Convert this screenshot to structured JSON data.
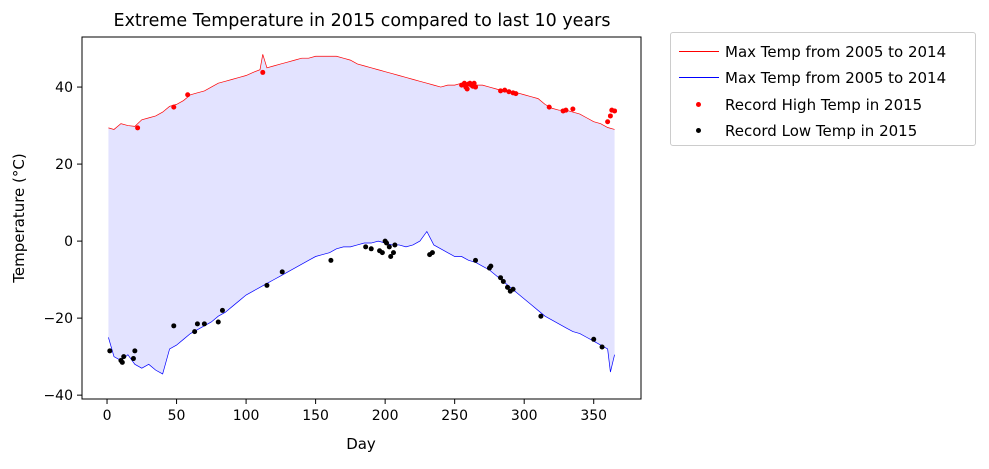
{
  "chart_data": {
    "type": "line",
    "title": "Extreme Temperature in 2015 compared to last 10 years",
    "xlabel": "Day",
    "ylabel": "Temperature (°C)",
    "xlim": [
      -18,
      384
    ],
    "ylim": [
      -41,
      53
    ],
    "xticks": [
      0,
      50,
      100,
      150,
      200,
      250,
      300,
      350
    ],
    "yticks": [
      -40,
      -20,
      0,
      20,
      40
    ],
    "grid": false,
    "legend_position": "outside-top-right",
    "fill_between": {
      "color": "#e3e3ff"
    },
    "series": [
      {
        "name": "Max Temp from 2005 to 2014",
        "kind": "line",
        "color": "#ff0000",
        "x": [
          1,
          5,
          10,
          15,
          20,
          25,
          30,
          35,
          40,
          45,
          50,
          55,
          60,
          65,
          70,
          75,
          80,
          85,
          90,
          95,
          100,
          105,
          110,
          112,
          115,
          120,
          125,
          130,
          135,
          140,
          145,
          150,
          155,
          160,
          165,
          170,
          175,
          180,
          185,
          190,
          195,
          200,
          205,
          210,
          215,
          220,
          225,
          230,
          235,
          240,
          245,
          250,
          255,
          260,
          265,
          270,
          275,
          280,
          285,
          290,
          295,
          300,
          305,
          310,
          315,
          320,
          325,
          330,
          335,
          340,
          345,
          350,
          355,
          360,
          365
        ],
        "y": [
          29.4,
          29.0,
          30.5,
          30.0,
          29.8,
          31.5,
          32.0,
          32.5,
          33.5,
          35.0,
          35.5,
          36.5,
          38.0,
          38.5,
          39.0,
          40.0,
          41.0,
          41.5,
          42.0,
          42.5,
          43.0,
          43.8,
          44.5,
          48.5,
          45.0,
          45.5,
          46.0,
          46.5,
          47.0,
          47.5,
          47.5,
          48.0,
          48.0,
          48.0,
          48.0,
          47.5,
          47.0,
          46.0,
          45.5,
          45.0,
          44.5,
          44.0,
          43.5,
          43.0,
          42.5,
          42.0,
          41.5,
          41.0,
          40.5,
          40.0,
          40.5,
          40.5,
          41.0,
          41.0,
          40.5,
          40.5,
          40.0,
          39.5,
          39.0,
          38.5,
          38.5,
          38.0,
          37.5,
          37.0,
          35.5,
          34.5,
          34.0,
          34.0,
          33.5,
          33.0,
          32.0,
          31.0,
          30.5,
          29.5,
          29.0
        ]
      },
      {
        "name": "Max Temp from 2005 to 2014",
        "kind": "line",
        "color": "#0000ff",
        "x": [
          1,
          5,
          10,
          15,
          20,
          25,
          30,
          35,
          40,
          45,
          50,
          55,
          60,
          65,
          70,
          75,
          80,
          85,
          90,
          95,
          100,
          105,
          110,
          115,
          120,
          125,
          130,
          135,
          140,
          145,
          150,
          155,
          160,
          165,
          170,
          175,
          180,
          185,
          190,
          195,
          200,
          205,
          210,
          215,
          220,
          225,
          230,
          235,
          240,
          245,
          250,
          255,
          260,
          265,
          270,
          275,
          280,
          285,
          290,
          295,
          300,
          305,
          310,
          315,
          320,
          325,
          330,
          335,
          340,
          345,
          350,
          355,
          360,
          362,
          365
        ],
        "y": [
          -25.0,
          -30.0,
          -31.0,
          -29.5,
          -32.0,
          -33.0,
          -32.0,
          -33.5,
          -34.5,
          -28.0,
          -27.0,
          -25.5,
          -24.0,
          -23.0,
          -22.0,
          -21.0,
          -19.5,
          -18.5,
          -17.0,
          -15.5,
          -14.0,
          -13.0,
          -12.0,
          -11.0,
          -10.0,
          -9.0,
          -8.0,
          -7.0,
          -6.0,
          -5.0,
          -4.0,
          -3.5,
          -3.0,
          -2.0,
          -1.5,
          -1.5,
          -1.0,
          -0.5,
          -0.5,
          0.0,
          -0.5,
          -1.0,
          -1.0,
          -1.5,
          -1.0,
          0.0,
          2.5,
          -1.0,
          -2.0,
          -3.0,
          -4.0,
          -4.0,
          -5.0,
          -5.5,
          -6.5,
          -7.5,
          -9.0,
          -10.5,
          -12.0,
          -13.5,
          -15.0,
          -16.5,
          -18.0,
          -19.5,
          -20.5,
          -21.5,
          -22.5,
          -23.5,
          -24.0,
          -25.0,
          -26.0,
          -27.0,
          -28.0,
          -34.0,
          -29.5
        ]
      },
      {
        "name": "Record High Temp in 2015",
        "kind": "scatter",
        "color": "#ff0000",
        "x": [
          22,
          48,
          58,
          112,
          255,
          257,
          258,
          259,
          260,
          261,
          262,
          263,
          264,
          265,
          283,
          286,
          289,
          292,
          294,
          318,
          328,
          330,
          335,
          360,
          362,
          363,
          365
        ],
        "y": [
          29.4,
          34.8,
          38.0,
          43.8,
          40.5,
          41.0,
          40.0,
          39.5,
          40.8,
          41.0,
          40.5,
          40.2,
          41.0,
          40.0,
          39.0,
          39.2,
          38.8,
          38.5,
          38.3,
          34.8,
          33.8,
          34.0,
          34.3,
          31.0,
          32.5,
          34.0,
          33.8
        ]
      },
      {
        "name": "Record Low Temp in 2015",
        "kind": "scatter",
        "color": "#000000",
        "x": [
          2,
          10,
          11,
          12,
          19,
          20,
          48,
          63,
          65,
          70,
          80,
          83,
          115,
          126,
          161,
          186,
          190,
          196,
          198,
          200,
          201,
          203,
          204,
          206,
          207,
          232,
          234,
          265,
          275,
          276,
          283,
          285,
          288,
          290,
          292,
          312,
          350,
          356
        ],
        "y": [
          -28.5,
          -31.0,
          -31.5,
          -30.0,
          -30.5,
          -28.5,
          -22.0,
          -23.5,
          -21.5,
          -21.5,
          -21.0,
          -18.0,
          -11.5,
          -8.0,
          -5.0,
          -1.5,
          -2.0,
          -2.5,
          -3.0,
          0.0,
          -0.5,
          -1.5,
          -4.0,
          -3.0,
          -1.0,
          -3.5,
          -3.0,
          -5.0,
          -7.0,
          -6.5,
          -9.5,
          -10.5,
          -12.0,
          -13.0,
          -12.5,
          -19.5,
          -25.5,
          -27.5
        ]
      }
    ]
  }
}
